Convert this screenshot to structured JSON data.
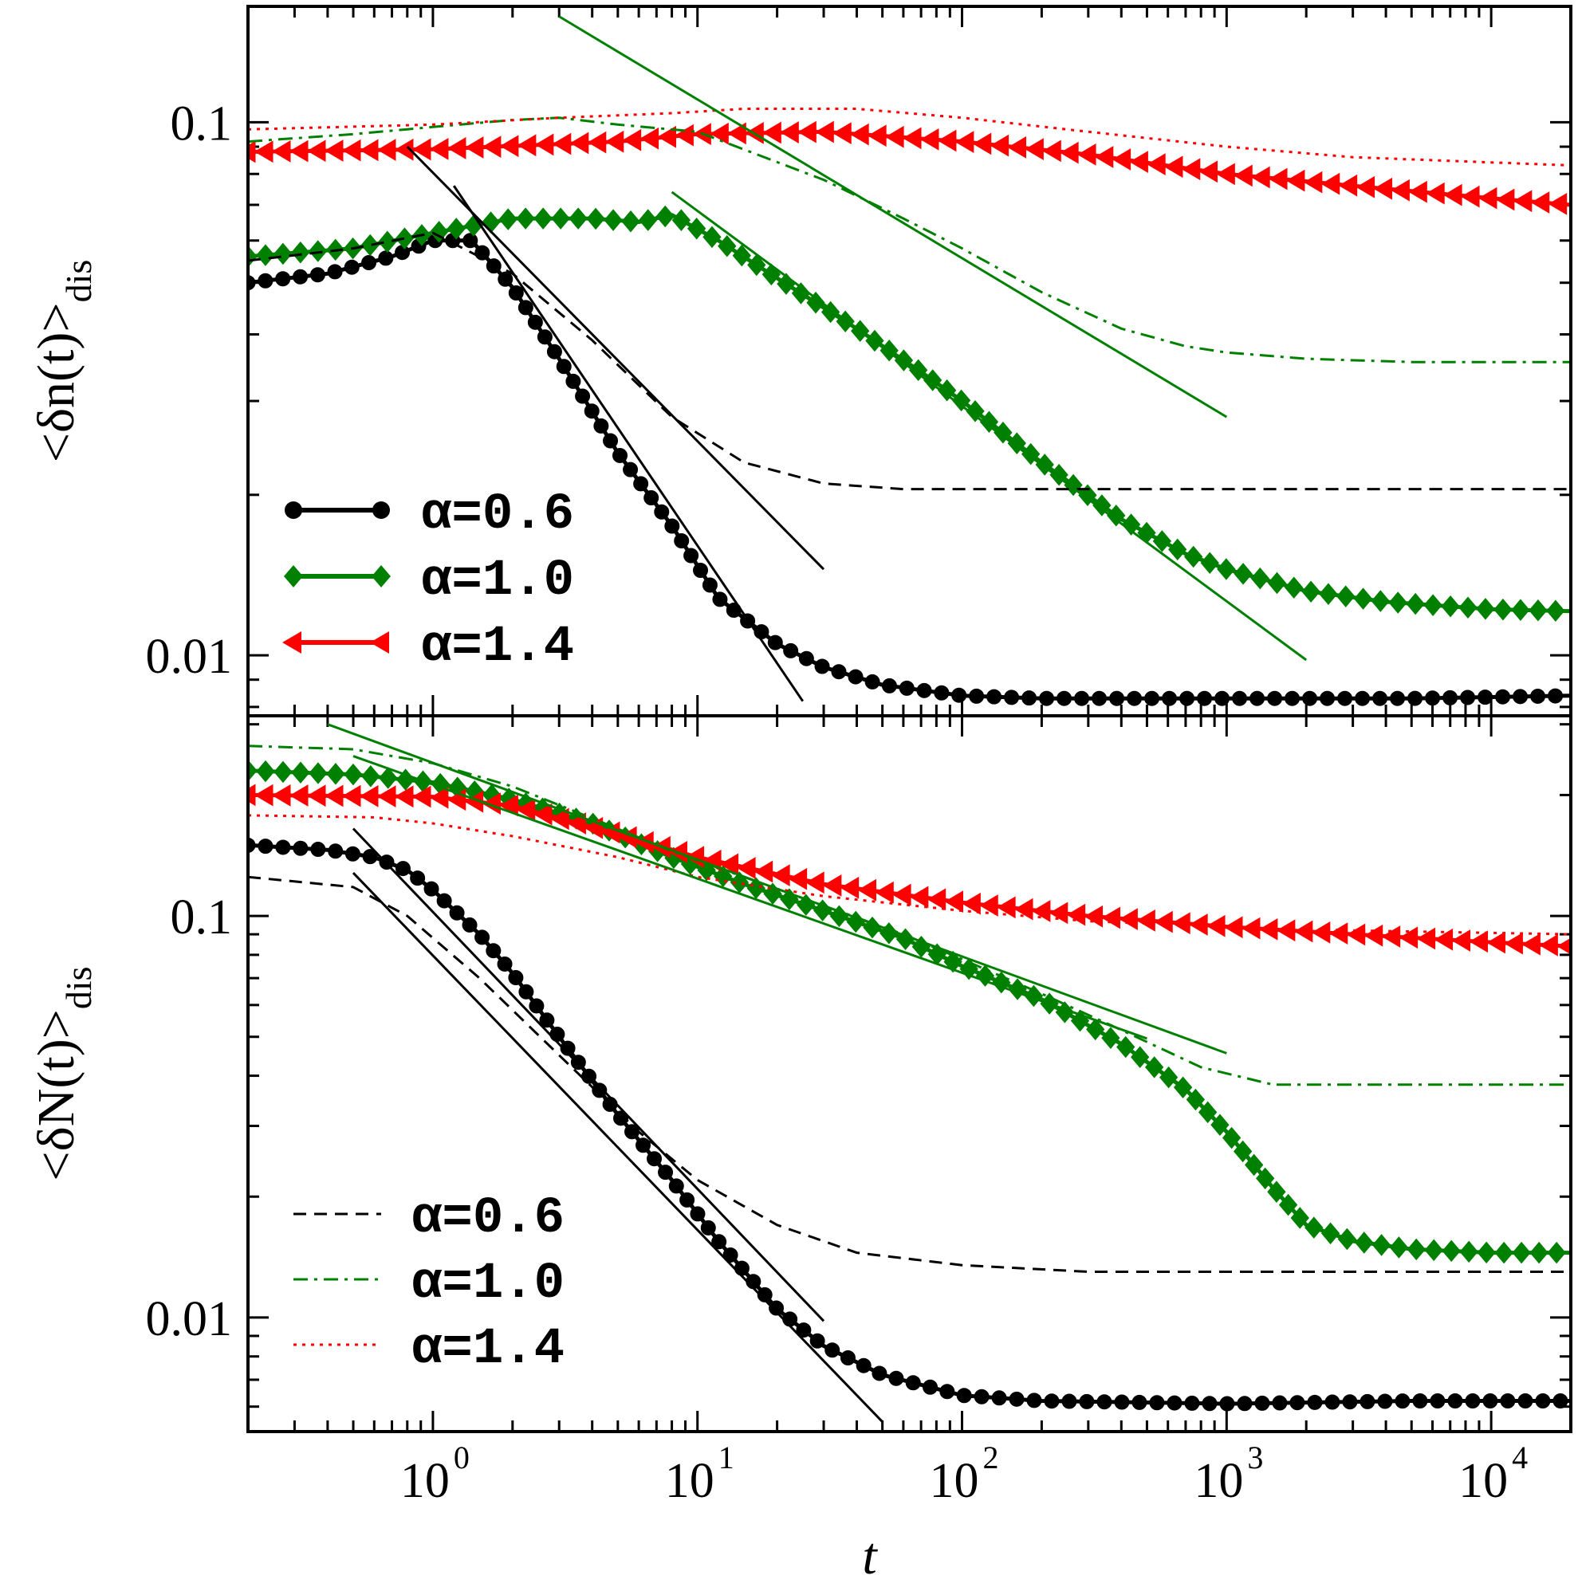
{
  "chart_data": [
    {
      "type": "line",
      "panel": "top",
      "ylabel": "<δn(t)>dis",
      "ylabel_main": "<δn(t)>",
      "ylabel_sub": "dis",
      "xlabel": "",
      "xscale": "log",
      "yscale": "log",
      "xlim": [
        0.2,
        20000
      ],
      "ylim": [
        0.0077,
        0.165
      ],
      "yticks": [
        {
          "value": 0.1,
          "label": "0.1"
        },
        {
          "value": 0.01,
          "label": "0.01"
        }
      ],
      "legend": {
        "placement": "lower-left",
        "entries": [
          {
            "label": "α=0.6",
            "series": "black-circle"
          },
          {
            "label": "α=1.0",
            "series": "green-diamond"
          },
          {
            "label": "α=1.4",
            "series": "red-triangle"
          }
        ]
      },
      "series": [
        {
          "id": "black-circle",
          "name": "α=0.6",
          "style": "line-marker",
          "marker": "circle",
          "color": "#000000",
          "x": [
            0.2,
            0.4,
            0.7,
            1.0,
            1.4,
            2.0,
            3.0,
            5.0,
            8.0,
            12,
            20,
            30,
            50,
            100,
            200,
            1000,
            5000,
            20000
          ],
          "y": [
            0.05,
            0.052,
            0.056,
            0.06,
            0.06,
            0.049,
            0.036,
            0.024,
            0.0175,
            0.0128,
            0.0105,
            0.0095,
            0.0088,
            0.0084,
            0.0083,
            0.0083,
            0.0083,
            0.0084
          ]
        },
        {
          "id": "green-diamond",
          "name": "α=1.0",
          "style": "line-marker",
          "marker": "diamond",
          "color": "#008000",
          "x": [
            0.2,
            0.5,
            1.0,
            2.0,
            4.0,
            6.0,
            8.0,
            12,
            20,
            40,
            70,
            100,
            200,
            400,
            700,
            1000,
            2000,
            4000,
            10000,
            20000
          ],
          "y": [
            0.056,
            0.058,
            0.062,
            0.066,
            0.066,
            0.065,
            0.067,
            0.06,
            0.051,
            0.041,
            0.034,
            0.03,
            0.023,
            0.018,
            0.0155,
            0.0145,
            0.0132,
            0.0126,
            0.0122,
            0.0121
          ]
        },
        {
          "id": "red-triangle",
          "name": "α=1.4",
          "style": "line-marker",
          "marker": "triangle-left",
          "color": "#ff0000",
          "x": [
            0.2,
            1.0,
            5.0,
            10,
            30,
            100,
            300,
            1000,
            3000,
            10000,
            20000
          ],
          "y": [
            0.088,
            0.089,
            0.092,
            0.095,
            0.096,
            0.092,
            0.087,
            0.08,
            0.076,
            0.072,
            0.07
          ]
        },
        {
          "id": "black-dashed",
          "style": "dashed",
          "color": "#000000",
          "x": [
            0.2,
            0.5,
            1.0,
            2.0,
            4.0,
            8.0,
            15,
            30,
            60,
            150,
            500,
            2000,
            20000
          ],
          "y": [
            0.055,
            0.058,
            0.062,
            0.052,
            0.039,
            0.028,
            0.023,
            0.021,
            0.0205,
            0.0205,
            0.0205,
            0.0205,
            0.0205
          ]
        },
        {
          "id": "green-dashdot",
          "style": "dashdot",
          "color": "#008000",
          "x": [
            0.2,
            0.5,
            1.0,
            2.0,
            3.0,
            5.0,
            10,
            30,
            60,
            100,
            200,
            400,
            700,
            1000,
            2000,
            5000,
            20000
          ],
          "y": [
            0.092,
            0.095,
            0.098,
            0.101,
            0.102,
            0.099,
            0.096,
            0.078,
            0.066,
            0.058,
            0.048,
            0.041,
            0.038,
            0.037,
            0.036,
            0.0355,
            0.0355
          ]
        },
        {
          "id": "red-dotted",
          "style": "dotted",
          "color": "#ff0000",
          "x": [
            0.2,
            1.0,
            3.0,
            8.0,
            15,
            40,
            100,
            300,
            1000,
            3000,
            20000
          ],
          "y": [
            0.097,
            0.099,
            0.102,
            0.104,
            0.106,
            0.106,
            0.102,
            0.096,
            0.09,
            0.086,
            0.083
          ]
        },
        {
          "id": "black-fit-1",
          "style": "solid-thin",
          "color": "#000000",
          "x": [
            0.8,
            30
          ],
          "y": [
            0.09,
            0.0145
          ]
        },
        {
          "id": "black-fit-2",
          "style": "solid-thin",
          "color": "#000000",
          "x": [
            1.2,
            25
          ],
          "y": [
            0.076,
            0.0082
          ]
        },
        {
          "id": "green-fit-1",
          "style": "solid-thin",
          "color": "#008000",
          "x": [
            3,
            1000
          ],
          "y": [
            0.158,
            0.028
          ]
        },
        {
          "id": "green-fit-2",
          "style": "solid-thin",
          "color": "#008000",
          "x": [
            8,
            2000
          ],
          "y": [
            0.074,
            0.0098
          ]
        }
      ]
    },
    {
      "type": "line",
      "panel": "bottom",
      "ylabel": "<δN(t)>dis",
      "ylabel_main": "<δN(t)>",
      "ylabel_sub": "dis",
      "xlabel": "t",
      "xscale": "log",
      "yscale": "log",
      "xlim": [
        0.2,
        20000
      ],
      "ylim": [
        0.0052,
        0.315
      ],
      "xticks": [
        {
          "value": 1,
          "base": "10",
          "exp": "0"
        },
        {
          "value": 10,
          "base": "10",
          "exp": "1"
        },
        {
          "value": 100,
          "base": "10",
          "exp": "2"
        },
        {
          "value": 1000,
          "base": "10",
          "exp": "3"
        },
        {
          "value": 10000,
          "base": "10",
          "exp": "4"
        }
      ],
      "yticks": [
        {
          "value": 0.1,
          "label": "0.1"
        },
        {
          "value": 0.01,
          "label": "0.01"
        }
      ],
      "legend": {
        "placement": "lower-left",
        "entries": [
          {
            "label": "α=0.6",
            "series": "black-dashed"
          },
          {
            "label": "α=1.0",
            "series": "green-dashdot"
          },
          {
            "label": "α=1.4",
            "series": "red-dotted"
          }
        ]
      },
      "series": [
        {
          "id": "black-circle",
          "style": "line-marker",
          "marker": "circle",
          "color": "#000000",
          "x": [
            0.2,
            0.4,
            0.6,
            0.8,
            1.0,
            1.5,
            2.0,
            3.0,
            5.0,
            8.0,
            12,
            20,
            30,
            50,
            100,
            200,
            1000,
            5000,
            20000
          ],
          "y": [
            0.15,
            0.146,
            0.14,
            0.13,
            0.116,
            0.09,
            0.072,
            0.05,
            0.032,
            0.022,
            0.0155,
            0.0105,
            0.0085,
            0.0072,
            0.0064,
            0.0062,
            0.0061,
            0.0062,
            0.0062
          ]
        },
        {
          "id": "green-diamond",
          "style": "line-marker",
          "marker": "diamond",
          "color": "#008000",
          "x": [
            0.2,
            0.5,
            1.0,
            2.0,
            4.0,
            8.0,
            15,
            30,
            60,
            100,
            200,
            400,
            700,
            1000,
            1500,
            2000,
            3000,
            5000,
            10000,
            20000
          ],
          "y": [
            0.23,
            0.225,
            0.215,
            0.195,
            0.17,
            0.14,
            0.12,
            0.103,
            0.088,
            0.075,
            0.062,
            0.048,
            0.037,
            0.029,
            0.021,
            0.017,
            0.0155,
            0.0148,
            0.0145,
            0.0145
          ]
        },
        {
          "id": "red-triangle",
          "style": "line-marker",
          "marker": "triangle-left",
          "color": "#ff0000",
          "x": [
            0.2,
            1.0,
            2.0,
            5.0,
            10,
            30,
            100,
            300,
            1000,
            3000,
            10000,
            20000
          ],
          "y": [
            0.2,
            0.198,
            0.188,
            0.16,
            0.14,
            0.12,
            0.108,
            0.1,
            0.094,
            0.09,
            0.086,
            0.084
          ]
        },
        {
          "id": "black-dashed",
          "style": "dashed",
          "color": "#000000",
          "x": [
            0.2,
            0.5,
            0.8,
            1.5,
            3.0,
            6.0,
            10,
            20,
            40,
            100,
            300,
            1000,
            5000,
            20000
          ],
          "y": [
            0.125,
            0.118,
            0.1,
            0.07,
            0.045,
            0.029,
            0.022,
            0.017,
            0.0145,
            0.0135,
            0.013,
            0.013,
            0.013,
            0.013
          ]
        },
        {
          "id": "green-dashdot",
          "style": "dashdot",
          "color": "#008000",
          "x": [
            0.2,
            0.5,
            1.0,
            2.0,
            4.0,
            8.0,
            15,
            30,
            60,
            100,
            200,
            400,
            800,
            1500,
            3000,
            10000,
            20000
          ],
          "y": [
            0.265,
            0.26,
            0.24,
            0.21,
            0.175,
            0.145,
            0.125,
            0.106,
            0.09,
            0.078,
            0.064,
            0.052,
            0.042,
            0.038,
            0.038,
            0.038,
            0.038
          ]
        },
        {
          "id": "red-dotted",
          "style": "dotted",
          "color": "#ff0000",
          "x": [
            0.2,
            0.6,
            1.0,
            2.0,
            5.0,
            10,
            30,
            100,
            300,
            1000,
            3000,
            20000
          ],
          "y": [
            0.178,
            0.176,
            0.17,
            0.158,
            0.14,
            0.125,
            0.112,
            0.103,
            0.097,
            0.094,
            0.092,
            0.09
          ]
        },
        {
          "id": "black-fit-1",
          "style": "solid-thin",
          "color": "#000000",
          "x": [
            0.5,
            30
          ],
          "y": [
            0.165,
            0.0098
          ]
        },
        {
          "id": "black-fit-2",
          "style": "solid-thin",
          "color": "#000000",
          "x": [
            0.5,
            50
          ],
          "y": [
            0.128,
            0.0055
          ]
        },
        {
          "id": "green-fit-1",
          "style": "solid-thin",
          "color": "#008000",
          "x": [
            0.4,
            1000
          ],
          "y": [
            0.3,
            0.0455
          ]
        },
        {
          "id": "green-fit-2",
          "style": "solid-thin",
          "color": "#008000",
          "x": [
            0.5,
            500
          ],
          "y": [
            0.25,
            0.0495
          ]
        }
      ]
    }
  ]
}
